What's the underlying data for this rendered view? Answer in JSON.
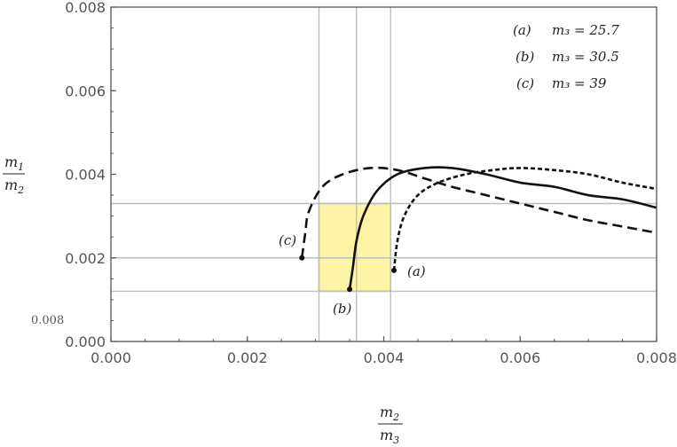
{
  "chart_data": {
    "type": "line",
    "x_axis": {
      "label_num": "m",
      "label_num_sub": "2",
      "label_den": "m",
      "label_den_sub": "3",
      "range": [
        0,
        0.008
      ],
      "ticks": [
        "0.000",
        "0.002",
        "0.004",
        "0.006",
        "0.008"
      ]
    },
    "y_axis": {
      "label_num": "m",
      "label_num_sub": "1",
      "label_den": "m",
      "label_den_sub": "2",
      "range": [
        0,
        0.008
      ],
      "ticks": [
        "0.000",
        "0.002",
        "0.004",
        "0.006",
        "0.008"
      ]
    },
    "stray_label": "0.008",
    "reference_lines": {
      "vertical": [
        0.00305,
        0.0036,
        0.0041
      ],
      "horizontal": [
        0.0012,
        0.002,
        0.0033
      ]
    },
    "region": {
      "x": [
        0.00305,
        0.0041
      ],
      "y": [
        0.0012,
        0.0033
      ],
      "color": "#fdf5a6"
    },
    "series": [
      {
        "name": "(a)",
        "param": "m₃ = 25.7",
        "style": "dotted-dash",
        "points": [
          [
            0.00415,
            0.0017
          ],
          [
            0.0042,
            0.0024
          ],
          [
            0.0043,
            0.003
          ],
          [
            0.0045,
            0.0035
          ],
          [
            0.0048,
            0.0038
          ],
          [
            0.0052,
            0.004
          ],
          [
            0.0056,
            0.0041
          ],
          [
            0.006,
            0.00415
          ],
          [
            0.0065,
            0.0041
          ],
          [
            0.007,
            0.004
          ],
          [
            0.0075,
            0.0038
          ],
          [
            0.008,
            0.00365
          ]
        ],
        "end_label": "(a)"
      },
      {
        "name": "(b)",
        "param": "m₃ = 30.5",
        "style": "solid",
        "points": [
          [
            0.0035,
            0.00125
          ],
          [
            0.00355,
            0.0018
          ],
          [
            0.0036,
            0.0024
          ],
          [
            0.0037,
            0.003
          ],
          [
            0.0039,
            0.0036
          ],
          [
            0.0042,
            0.004
          ],
          [
            0.0046,
            0.00415
          ],
          [
            0.005,
            0.00415
          ],
          [
            0.0055,
            0.004
          ],
          [
            0.006,
            0.0038
          ],
          [
            0.0065,
            0.0037
          ],
          [
            0.007,
            0.0035
          ],
          [
            0.0075,
            0.0034
          ],
          [
            0.008,
            0.0032
          ]
        ],
        "end_label": "(b)"
      },
      {
        "name": "(c)",
        "param": "m₃ = 39",
        "style": "dashed",
        "points": [
          [
            0.0028,
            0.002
          ],
          [
            0.00285,
            0.0026
          ],
          [
            0.0029,
            0.0031
          ],
          [
            0.0031,
            0.0037
          ],
          [
            0.0034,
            0.004
          ],
          [
            0.0038,
            0.00415
          ],
          [
            0.0042,
            0.0041
          ],
          [
            0.0046,
            0.0039
          ],
          [
            0.005,
            0.0037
          ],
          [
            0.0055,
            0.0035
          ],
          [
            0.006,
            0.0033
          ],
          [
            0.0065,
            0.0031
          ],
          [
            0.007,
            0.0029
          ],
          [
            0.0075,
            0.00275
          ],
          [
            0.008,
            0.0026
          ]
        ],
        "end_label": "(c)"
      }
    ],
    "legend_position": "top-right",
    "grid": false
  }
}
